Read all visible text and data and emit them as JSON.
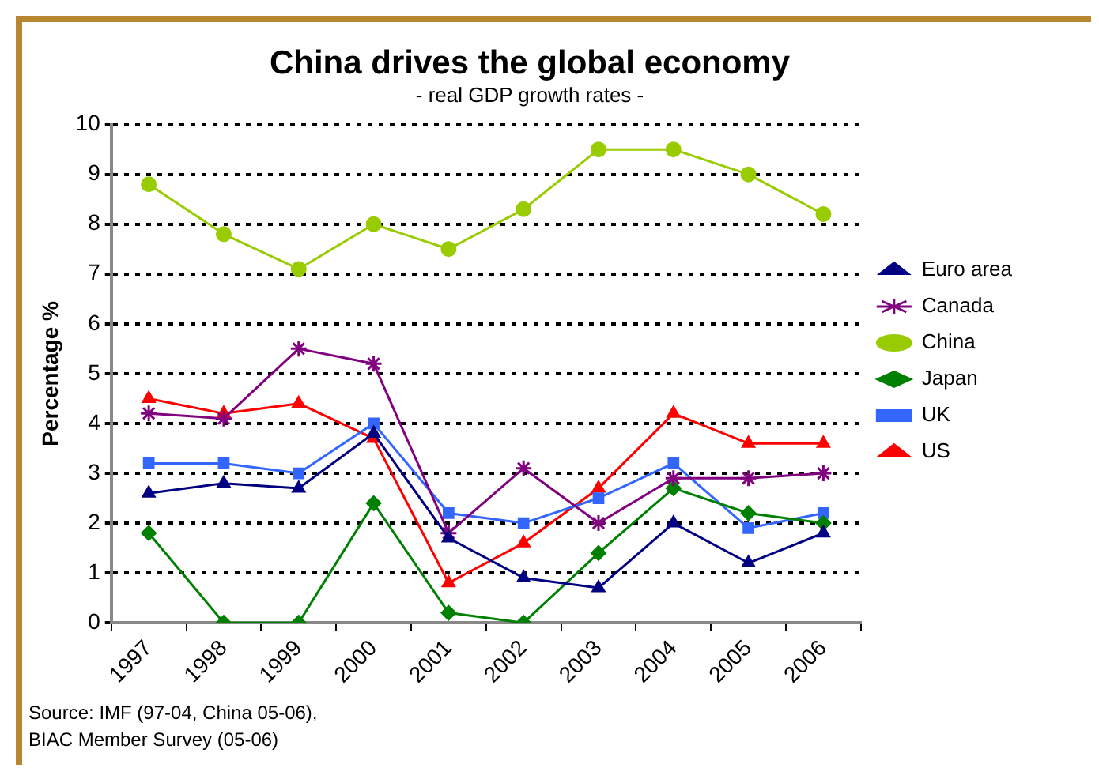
{
  "chart_data": {
    "type": "line",
    "title": "China drives the global economy",
    "subtitle": "- real GDP growth rates -",
    "ylabel": "Percentage %",
    "categories": [
      "1997",
      "1998",
      "1999",
      "2000",
      "2001",
      "2002",
      "2003",
      "2004",
      "2005",
      "2006"
    ],
    "series": [
      {
        "name": "Euro area",
        "color": "#000080",
        "marker": "triangle",
        "values": [
          2.6,
          2.8,
          2.7,
          3.8,
          1.7,
          0.9,
          0.7,
          2.0,
          1.2,
          1.8
        ]
      },
      {
        "name": "Canada",
        "color": "#800080",
        "marker": "cross",
        "values": [
          4.2,
          4.1,
          5.5,
          5.2,
          1.8,
          3.1,
          2.0,
          2.9,
          2.9,
          3.0
        ]
      },
      {
        "name": "China",
        "color": "#99cc00",
        "marker": "circle",
        "values": [
          8.8,
          7.8,
          7.1,
          8.0,
          7.5,
          8.3,
          9.5,
          9.5,
          9.0,
          8.2
        ]
      },
      {
        "name": "Japan",
        "color": "#008000",
        "marker": "diamond",
        "values": [
          1.8,
          0,
          0,
          2.4,
          0.2,
          0,
          1.4,
          2.7,
          2.2,
          2.0
        ]
      },
      {
        "name": "UK",
        "color": "#3366ff",
        "marker": "square",
        "values": [
          3.2,
          3.2,
          3.0,
          4.0,
          2.2,
          2.0,
          2.5,
          3.2,
          1.9,
          2.2
        ]
      },
      {
        "name": "US",
        "color": "#ff0000",
        "marker": "triangle",
        "values": [
          4.5,
          4.2,
          4.4,
          3.7,
          0.8,
          1.6,
          2.7,
          4.2,
          3.6,
          3.6
        ]
      }
    ],
    "ylim": [
      0,
      10
    ],
    "yticks": [
      0,
      1,
      2,
      3,
      4,
      5,
      6,
      7,
      8,
      9,
      10
    ],
    "grid": "y",
    "legend": "right",
    "line_style": "solid",
    "annotations": [
      "Source: IMF (97-04, China 05-06),",
      "BIAC Member Survey (05-06)"
    ]
  }
}
